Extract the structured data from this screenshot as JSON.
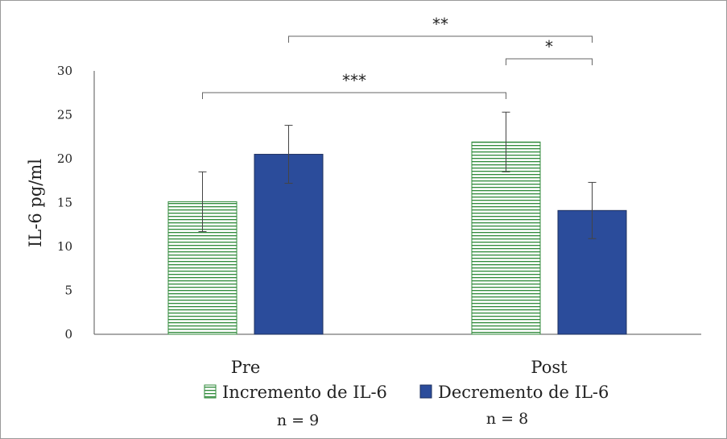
{
  "chart_data": {
    "type": "bar",
    "title": "",
    "xlabel": "",
    "ylabel": "IL-6 pg/ml",
    "ylim": [
      0,
      30
    ],
    "yticks": [
      0,
      5,
      10,
      15,
      20,
      25,
      30
    ],
    "grid": false,
    "categories": [
      "Pre",
      "Post"
    ],
    "series": [
      {
        "name": "Incremento de IL-6",
        "pattern": "horizontal-stripes",
        "color": "#2f8a3a",
        "values": [
          15.1,
          21.9
        ],
        "errors": [
          3.4,
          3.4
        ]
      },
      {
        "name": "Decremento de IL-6",
        "pattern": "solid",
        "color": "#2b4c9b",
        "values": [
          20.5,
          14.1
        ],
        "errors": [
          3.3,
          3.2
        ]
      }
    ],
    "significance": [
      {
        "label": "***",
        "from": "Pre / Incremento de IL-6",
        "to": "Post / Incremento de IL-6"
      },
      {
        "label": "**",
        "from": "Pre / Decremento de IL-6",
        "to": "Post / Decremento de IL-6"
      },
      {
        "label": "*",
        "from": "Post / Incremento de IL-6",
        "to": "Post / Decremento de IL-6"
      }
    ],
    "n_labels": [
      "n = 9",
      "n = 8"
    ]
  }
}
